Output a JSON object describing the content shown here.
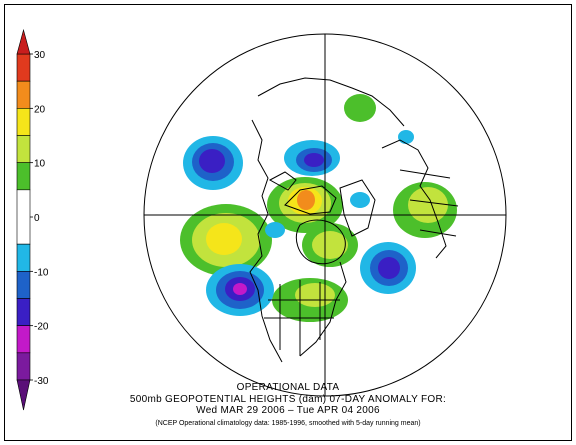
{
  "colorbar": {
    "ticks": [
      "30",
      "20",
      "10",
      "0",
      "-10",
      "-20",
      "-30"
    ],
    "tick_values": [
      30,
      20,
      10,
      0,
      -10,
      -20,
      -30
    ],
    "bands": [
      {
        "from": 25,
        "to": 30,
        "color": "#e03a1e"
      },
      {
        "from": 20,
        "to": 25,
        "color": "#f28c1c"
      },
      {
        "from": 15,
        "to": 20,
        "color": "#f5e51a"
      },
      {
        "from": 10,
        "to": 15,
        "color": "#c2e33d"
      },
      {
        "from": 5,
        "to": 10,
        "color": "#4cbf2b"
      },
      {
        "from": -5,
        "to": 5,
        "color": "#ffffff"
      },
      {
        "from": -10,
        "to": -5,
        "color": "#21b7e6"
      },
      {
        "from": -15,
        "to": -10,
        "color": "#1e62c9"
      },
      {
        "from": -20,
        "to": -15,
        "color": "#3a1fc4"
      },
      {
        "from": -25,
        "to": -20,
        "color": "#c319c9"
      },
      {
        "from": -30,
        "to": -25,
        "color": "#7b1a9e"
      }
    ],
    "top_cap_color": "#c81d1d",
    "bottom_cap_color": "#5a0f78"
  },
  "caption": {
    "line1": "OPERATIONAL DATA",
    "line2": "500mb GEOPOTENTIAL HEIGHTS (dam)    07-DAY ANOMALY FOR:",
    "line3": "Wed MAR 29 2006 – Tue APR 04 2006",
    "line4": "(NCEP Operational climatology data: 1985-1996, smoothed with 5-day running mean)"
  },
  "anomaly_centers": [
    {
      "label": "positive",
      "value": 25,
      "color": "#f28c1c"
    },
    {
      "label": "positive",
      "value": 15,
      "color": "#f5e51a"
    },
    {
      "label": "negative",
      "value": -22,
      "color": "#c319c9"
    },
    {
      "label": "negative",
      "value": -18,
      "color": "#3a1fc4"
    },
    {
      "label": "negative",
      "value": -17,
      "color": "#3a1fc4"
    },
    {
      "label": "negative",
      "value": -16,
      "color": "#3a1fc4"
    }
  ]
}
